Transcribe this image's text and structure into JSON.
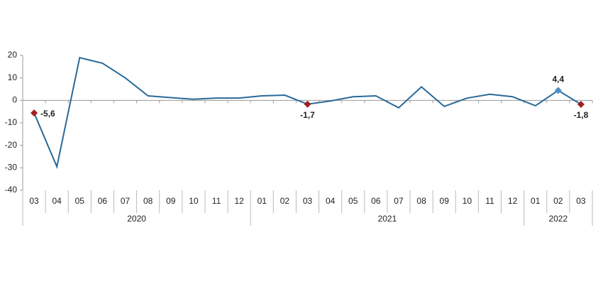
{
  "chart_data": {
    "type": "line",
    "categories": [
      "03",
      "04",
      "05",
      "06",
      "07",
      "08",
      "09",
      "10",
      "11",
      "12",
      "01",
      "02",
      "03",
      "04",
      "05",
      "06",
      "07",
      "08",
      "09",
      "10",
      "11",
      "12",
      "01",
      "02",
      "03"
    ],
    "groups": [
      {
        "name": "2020",
        "count": 10
      },
      {
        "name": "2021",
        "count": 12
      },
      {
        "name": "2022",
        "count": 3
      }
    ],
    "series": [
      {
        "color": "#2a6a99",
        "values": [
          -5.6,
          -29.5,
          19,
          16.5,
          10,
          2,
          1.2,
          0.5,
          1,
          1,
          2,
          2.3,
          -1.7,
          -0.3,
          1.6,
          2,
          -3.3,
          6,
          -2.7,
          1,
          2.7,
          1.6,
          -2.4,
          4.4,
          -1.8
        ],
        "value_labels": [
          "-5,6",
          null,
          null,
          null,
          null,
          null,
          null,
          null,
          null,
          null,
          null,
          null,
          "-1,7",
          null,
          null,
          null,
          null,
          null,
          null,
          null,
          null,
          null,
          null,
          "4,4",
          "-1,8"
        ],
        "marker_colors": [
          "#a32020",
          null,
          null,
          null,
          null,
          null,
          null,
          null,
          null,
          null,
          null,
          null,
          "#a32020",
          null,
          null,
          null,
          null,
          null,
          null,
          null,
          null,
          null,
          null,
          "#4a90c8",
          "#a32020"
        ]
      }
    ],
    "ylim": [
      -40,
      20
    ],
    "yticks": [
      20,
      10,
      0,
      -10,
      -20,
      -30,
      -40
    ],
    "grid": false
  }
}
